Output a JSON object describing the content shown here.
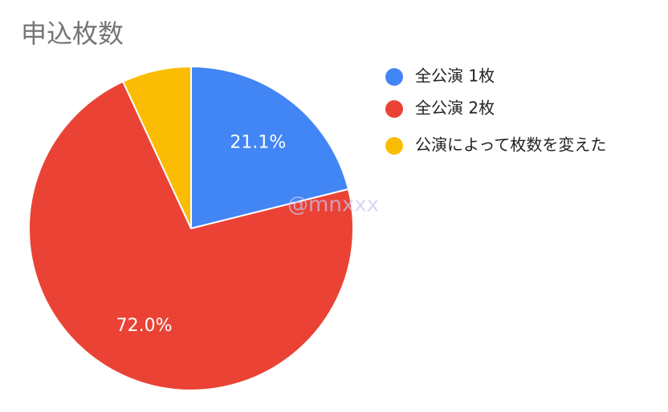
{
  "chart_data": {
    "type": "pie",
    "title": "申込枚数",
    "categories": [
      "全公演 1枚",
      "全公演 2枚",
      "公演によって枚数を変えた"
    ],
    "values": [
      21.1,
      72.0,
      6.9
    ],
    "value_labels": [
      "21.1%",
      "72.0%",
      null
    ],
    "colors": [
      "#4285f4",
      "#ea4335",
      "#fbbc04"
    ],
    "legend": "right",
    "watermark": "@mnxxx"
  }
}
